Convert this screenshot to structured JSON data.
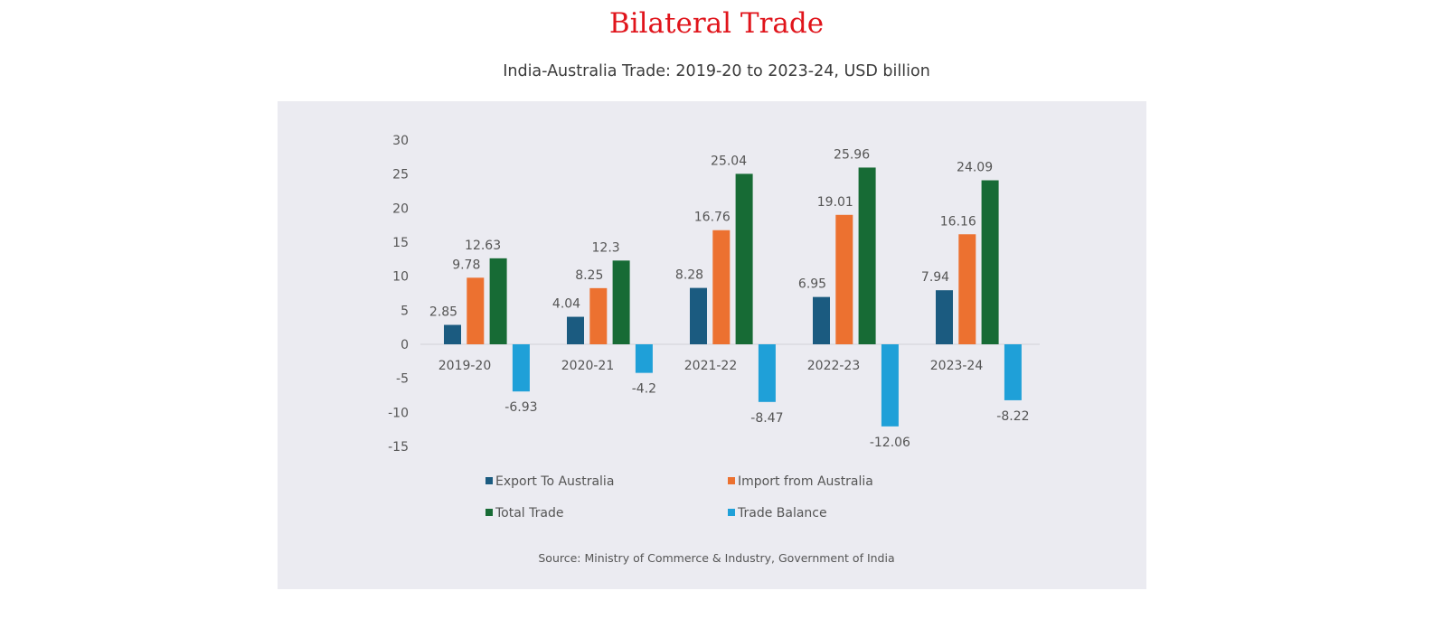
{
  "header": {
    "title": "Bilateral Trade"
  },
  "chart_data": {
    "type": "bar",
    "title": "India-Australia Trade: 2019-20 to 2023-24, USD billion",
    "xlabel": "",
    "ylabel": "",
    "ylim": [
      -15,
      30
    ],
    "yticks": [
      30,
      25,
      20,
      15,
      10,
      5,
      0,
      -5,
      -10,
      -15
    ],
    "categories": [
      "2019-20",
      "2020-21",
      "2021-22",
      "2022-23",
      "2023-24"
    ],
    "series": [
      {
        "name": "Export To Australia",
        "color": "#1b5b80",
        "values": [
          2.85,
          4.04,
          8.28,
          6.95,
          7.94
        ]
      },
      {
        "name": "Import from Australia",
        "color": "#ec7130",
        "values": [
          9.78,
          8.25,
          16.76,
          19.01,
          16.16
        ]
      },
      {
        "name": "Total Trade",
        "color": "#176b35",
        "values": [
          12.63,
          12.3,
          25.04,
          25.96,
          24.09
        ]
      },
      {
        "name": "Trade Balance",
        "color": "#1fa0d8",
        "values": [
          -6.93,
          -4.2,
          -8.47,
          -12.06,
          -8.22
        ]
      }
    ],
    "legend_position": "bottom",
    "grid": false,
    "source": "Source: Ministry of Commerce & Industry, Government of India"
  }
}
